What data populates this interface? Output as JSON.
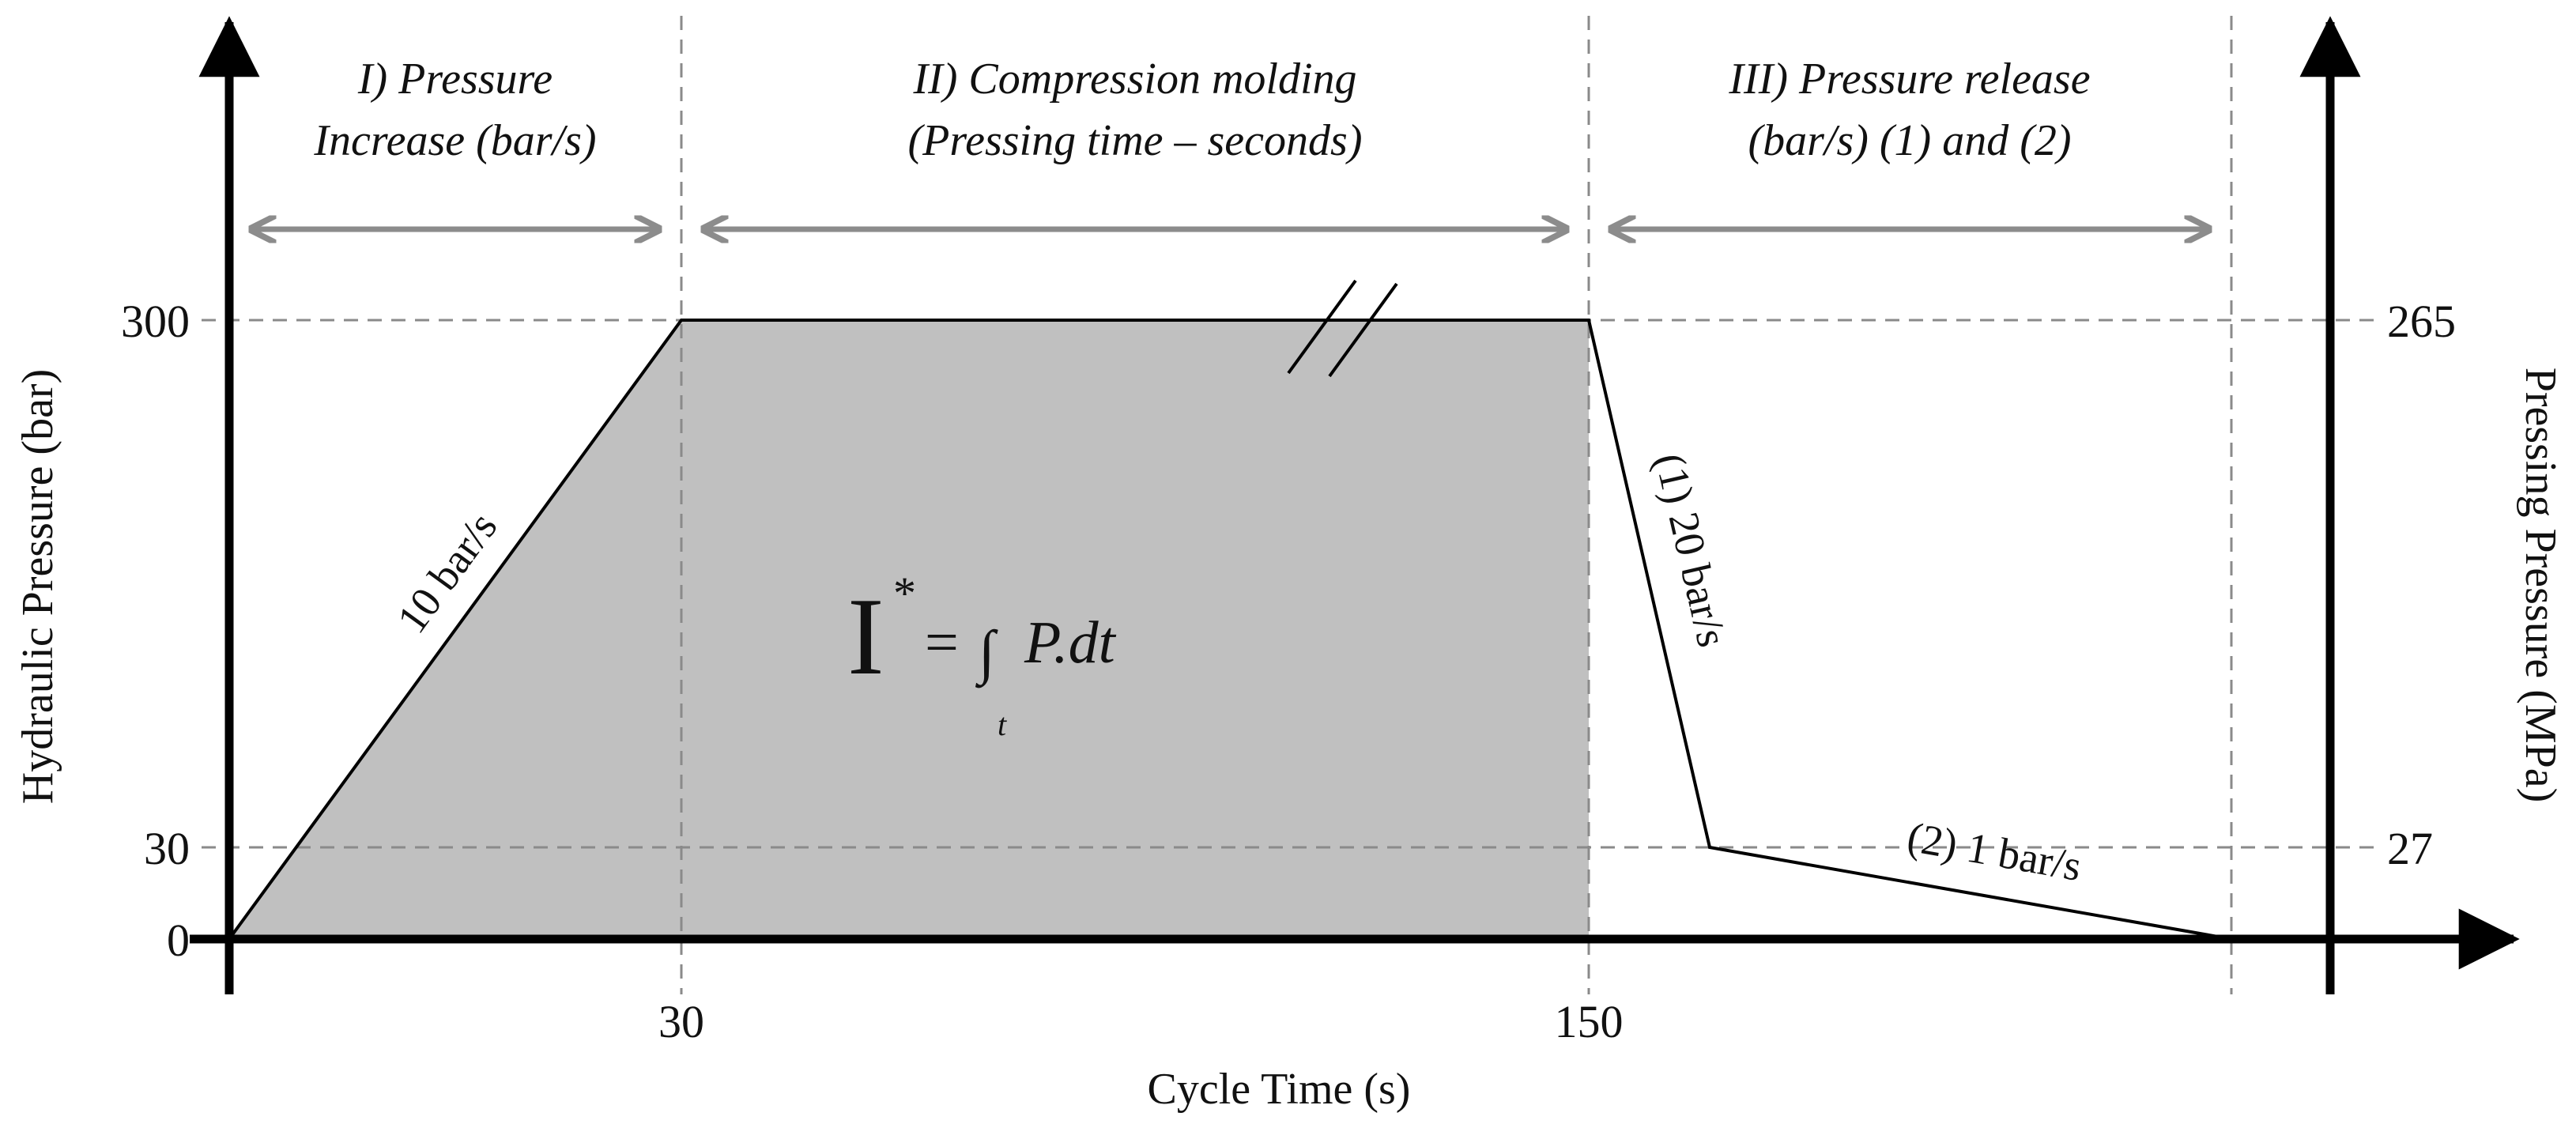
{
  "axes": {
    "x_label": "Cycle Time (s)",
    "y_left_label": "Hydraulic Pressure (bar)",
    "y_right_label": "Pressing Pressure (MPa)",
    "x_ticks": [
      "30",
      "150"
    ],
    "y_left_ticks": [
      "300",
      "30",
      "0"
    ],
    "y_right_ticks": [
      "265",
      "27"
    ]
  },
  "phases": {
    "phase1": {
      "line1": "I) Pressure",
      "line2": "Increase (bar/s)"
    },
    "phase2": {
      "line1": "II) Compression molding",
      "line2": "(Pressing time – seconds)"
    },
    "phase3": {
      "line1": "III) Pressure release",
      "line2": "(bar/s) (1) and (2)"
    }
  },
  "rates": {
    "increase": "10 bar/s",
    "release1": "(1) 20 bar/s",
    "release2": "(2) 1 bar/s"
  },
  "equation": {
    "symbol": "I",
    "superscript": "*",
    "equals": "=",
    "integral": "∫",
    "integrand": "P.dt",
    "subscript": "t"
  },
  "colors": {
    "area_fill": "#c0c0c0",
    "axis": "#000000",
    "dashed_guide": "#8a8a8a",
    "phase_arrow": "#8c8c8c"
  }
}
